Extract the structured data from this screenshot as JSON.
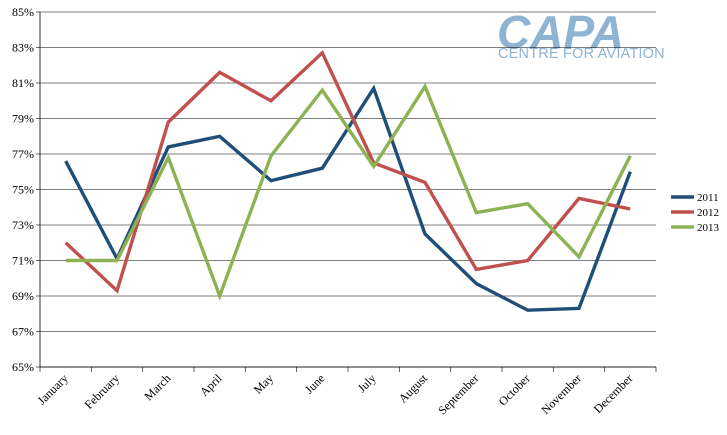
{
  "chart_data": {
    "type": "line",
    "title": "",
    "xlabel": "",
    "ylabel": "",
    "categories": [
      "January",
      "February",
      "March",
      "April",
      "May",
      "June",
      "July",
      "August",
      "September",
      "October",
      "November",
      "December"
    ],
    "ylim": [
      65,
      85
    ],
    "yticks": [
      "65%",
      "67%",
      "69%",
      "71%",
      "73%",
      "75%",
      "77%",
      "79%",
      "81%",
      "83%",
      "85%"
    ],
    "grid": true,
    "legend_position": "right",
    "series": [
      {
        "name": "2011",
        "color": "#1f4e79",
        "values": [
          76.6,
          71.1,
          77.4,
          78.0,
          75.5,
          76.2,
          80.7,
          72.5,
          69.7,
          68.2,
          68.3,
          76.0
        ]
      },
      {
        "name": "2012",
        "color": "#c0504d",
        "values": [
          72.0,
          69.3,
          78.8,
          81.6,
          80.0,
          82.7,
          76.5,
          75.4,
          70.5,
          71.0,
          74.5,
          73.9
        ]
      },
      {
        "name": "2013",
        "color": "#8db254",
        "values": [
          71.0,
          71.0,
          76.8,
          69.0,
          76.9,
          80.6,
          76.3,
          80.8,
          73.7,
          74.2,
          71.2,
          76.9
        ]
      }
    ]
  },
  "logo": {
    "name": "CAPA",
    "subtitle": "CENTRE FOR AVIATION",
    "color": "#8fb3d3"
  }
}
